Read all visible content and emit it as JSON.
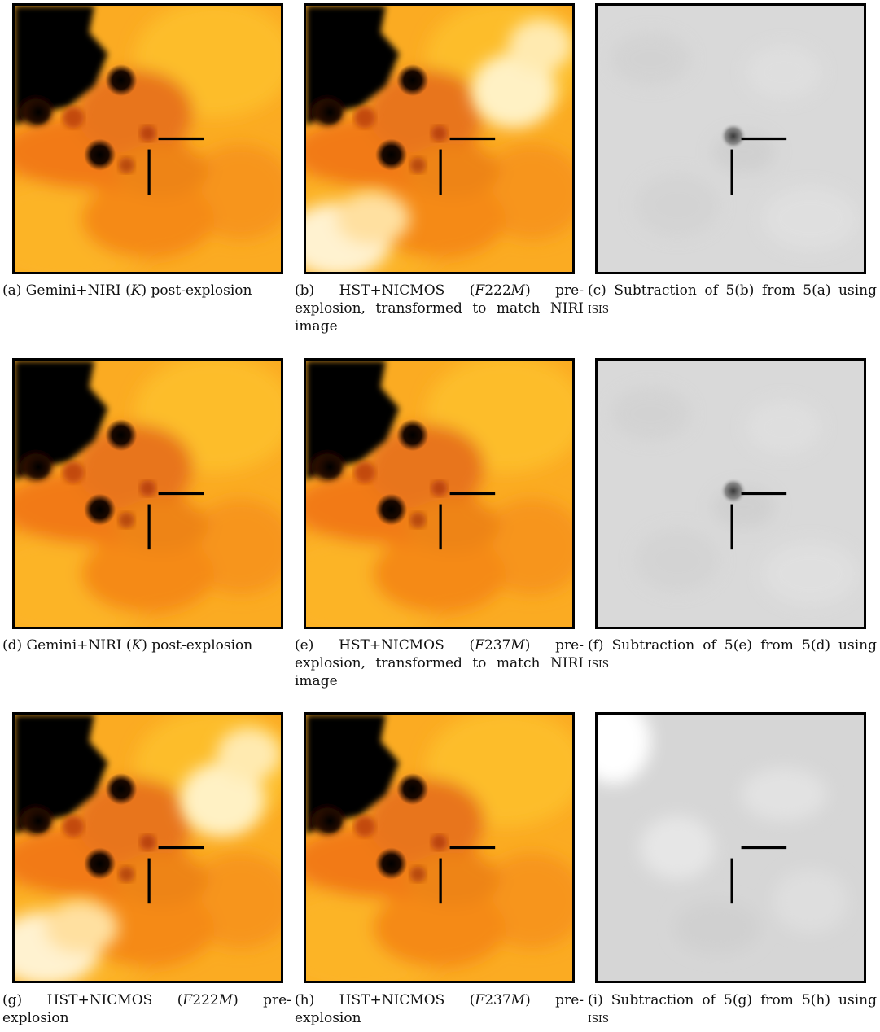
{
  "figure": {
    "rows": [
      {
        "panels": [
          {
            "id": "a",
            "style": "orange",
            "caption": "(a)  Gemini+NIRI  (K)  post-explosion"
          },
          {
            "id": "b",
            "style": "orange-bright",
            "caption": "(b) HST+NICMOS (F222M) pre-explosion, transformed to match NIRI image"
          },
          {
            "id": "c",
            "style": "gray",
            "caption": "(c) Subtraction of 5(b) from 5(a) using ISIS"
          }
        ]
      },
      {
        "panels": [
          {
            "id": "d",
            "style": "orange",
            "caption": "(d)  Gemini+NIRI  (K)  post-explosion"
          },
          {
            "id": "e",
            "style": "orange",
            "caption": "(e) HST+NICMOS (F237M) pre-explosion, transformed to match NIRI image"
          },
          {
            "id": "f",
            "style": "gray",
            "caption": "(f) Subtraction of 5(e) from 5(d) using ISIS"
          }
        ]
      },
      {
        "panels": [
          {
            "id": "g",
            "style": "orange-bright",
            "caption": "(g) HST+NICMOS (F222M) pre-explosion"
          },
          {
            "id": "h",
            "style": "orange",
            "caption": "(h) HST+NICMOS (F237M) pre-explosion"
          },
          {
            "id": "i",
            "style": "gray-noisy",
            "caption": "(i) Subtraction of 5(g) from 5(h) using ISIS"
          }
        ]
      }
    ]
  },
  "colors": {
    "orange_light": "#fdbd2a",
    "orange_mid": "#f7951c",
    "orange_dark": "#e06a10",
    "cream": "#fff2d0",
    "gray_bg": "#d9d9d9",
    "marker": "#000000"
  }
}
